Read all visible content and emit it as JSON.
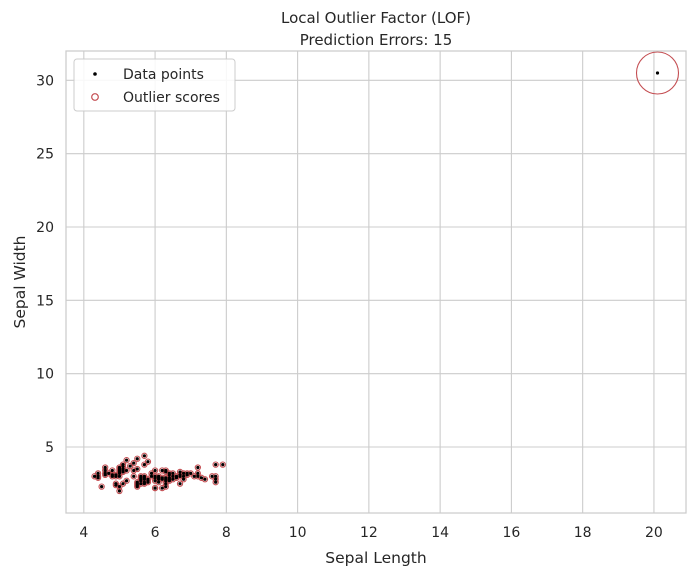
{
  "chart_data": {
    "type": "scatter",
    "title": "Local Outlier Factor (LOF)",
    "subtitle": "Prediction Errors: 15",
    "xlabel": "Sepal Length",
    "ylabel": "Sepal Width",
    "xlim": [
      3.5,
      20.9
    ],
    "ylim": [
      0.5,
      32.0
    ],
    "xticks": [
      4,
      6,
      8,
      10,
      12,
      14,
      16,
      18,
      20
    ],
    "yticks": [
      5,
      10,
      15,
      20,
      25,
      30
    ],
    "grid": true,
    "legend": {
      "position": "top-left",
      "entries": [
        "Data points",
        "Outlier scores"
      ]
    },
    "colors": {
      "points": "#000000",
      "outlier_circles": "#c44e52",
      "grid": "#cccccc",
      "axes": "#cccccc"
    },
    "series": [
      {
        "name": "Data points",
        "points": [
          [
            4.3,
            3.0
          ],
          [
            4.4,
            2.9
          ],
          [
            4.4,
            3.0
          ],
          [
            4.4,
            3.2
          ],
          [
            4.5,
            2.3
          ],
          [
            4.6,
            3.1
          ],
          [
            4.6,
            3.4
          ],
          [
            4.6,
            3.6
          ],
          [
            4.6,
            3.2
          ],
          [
            4.7,
            3.2
          ],
          [
            4.8,
            3.4
          ],
          [
            4.8,
            3.0
          ],
          [
            4.8,
            3.1
          ],
          [
            4.9,
            3.0
          ],
          [
            4.9,
            3.1
          ],
          [
            4.9,
            2.4
          ],
          [
            4.9,
            2.5
          ],
          [
            5.0,
            3.6
          ],
          [
            5.0,
            3.4
          ],
          [
            5.0,
            3.0
          ],
          [
            5.0,
            3.3
          ],
          [
            5.0,
            2.0
          ],
          [
            5.0,
            2.3
          ],
          [
            5.0,
            3.5
          ],
          [
            5.0,
            3.2
          ],
          [
            5.1,
            3.5
          ],
          [
            5.1,
            3.7
          ],
          [
            5.1,
            3.8
          ],
          [
            5.1,
            3.3
          ],
          [
            5.1,
            2.5
          ],
          [
            5.1,
            3.4
          ],
          [
            5.2,
            3.4
          ],
          [
            5.2,
            4.1
          ],
          [
            5.2,
            2.7
          ],
          [
            5.3,
            3.7
          ],
          [
            5.4,
            3.9
          ],
          [
            5.4,
            3.4
          ],
          [
            5.4,
            3.0
          ],
          [
            5.5,
            4.2
          ],
          [
            5.5,
            3.5
          ],
          [
            5.5,
            2.3
          ],
          [
            5.5,
            2.4
          ],
          [
            5.5,
            2.6
          ],
          [
            5.5,
            2.5
          ],
          [
            5.6,
            2.9
          ],
          [
            5.6,
            3.0
          ],
          [
            5.6,
            2.5
          ],
          [
            5.6,
            2.7
          ],
          [
            5.6,
            2.8
          ],
          [
            5.7,
            4.4
          ],
          [
            5.7,
            3.8
          ],
          [
            5.7,
            2.8
          ],
          [
            5.7,
            2.6
          ],
          [
            5.7,
            3.0
          ],
          [
            5.7,
            2.9
          ],
          [
            5.7,
            2.5
          ],
          [
            5.8,
            4.0
          ],
          [
            5.8,
            2.7
          ],
          [
            5.8,
            2.6
          ],
          [
            5.8,
            2.8
          ],
          [
            5.9,
            3.0
          ],
          [
            5.9,
            3.2
          ],
          [
            6.0,
            2.2
          ],
          [
            6.0,
            2.9
          ],
          [
            6.0,
            2.7
          ],
          [
            6.0,
            3.4
          ],
          [
            6.0,
            3.0
          ],
          [
            6.0,
            2.2
          ],
          [
            6.1,
            2.9
          ],
          [
            6.1,
            2.8
          ],
          [
            6.1,
            3.0
          ],
          [
            6.1,
            2.6
          ],
          [
            6.2,
            2.2
          ],
          [
            6.2,
            2.9
          ],
          [
            6.2,
            3.4
          ],
          [
            6.2,
            2.8
          ],
          [
            6.3,
            3.3
          ],
          [
            6.3,
            2.5
          ],
          [
            6.3,
            2.3
          ],
          [
            6.3,
            2.9
          ],
          [
            6.3,
            2.7
          ],
          [
            6.3,
            2.8
          ],
          [
            6.3,
            3.4
          ],
          [
            6.4,
            3.2
          ],
          [
            6.4,
            2.9
          ],
          [
            6.4,
            2.7
          ],
          [
            6.4,
            2.8
          ],
          [
            6.4,
            3.1
          ],
          [
            6.5,
            2.8
          ],
          [
            6.5,
            3.0
          ],
          [
            6.5,
            3.2
          ],
          [
            6.6,
            2.9
          ],
          [
            6.6,
            3.0
          ],
          [
            6.7,
            3.1
          ],
          [
            6.7,
            3.0
          ],
          [
            6.7,
            2.5
          ],
          [
            6.7,
            3.3
          ],
          [
            6.8,
            2.8
          ],
          [
            6.8,
            3.0
          ],
          [
            6.8,
            3.2
          ],
          [
            6.9,
            3.1
          ],
          [
            6.9,
            3.2
          ],
          [
            7.0,
            3.2
          ],
          [
            7.1,
            3.0
          ],
          [
            7.2,
            3.6
          ],
          [
            7.2,
            3.2
          ],
          [
            7.2,
            3.0
          ],
          [
            7.3,
            2.9
          ],
          [
            7.4,
            2.8
          ],
          [
            7.6,
            3.0
          ],
          [
            7.7,
            3.8
          ],
          [
            7.7,
            2.6
          ],
          [
            7.7,
            2.8
          ],
          [
            7.7,
            3.0
          ],
          [
            7.9,
            3.8
          ],
          [
            20.1,
            30.5
          ]
        ]
      },
      {
        "name": "Outlier scores",
        "points": [
          [
            4.3,
            3.0,
            0.02
          ],
          [
            4.4,
            2.9,
            0.02
          ],
          [
            4.4,
            3.0,
            0.02
          ],
          [
            4.4,
            3.2,
            0.02
          ],
          [
            4.5,
            2.3,
            0.025
          ],
          [
            4.6,
            3.1,
            0.02
          ],
          [
            4.6,
            3.4,
            0.02
          ],
          [
            4.6,
            3.6,
            0.02
          ],
          [
            4.6,
            3.2,
            0.02
          ],
          [
            4.7,
            3.2,
            0.02
          ],
          [
            4.8,
            3.4,
            0.02
          ],
          [
            4.8,
            3.0,
            0.02
          ],
          [
            4.8,
            3.1,
            0.02
          ],
          [
            4.9,
            3.0,
            0.02
          ],
          [
            4.9,
            3.1,
            0.02
          ],
          [
            4.9,
            2.4,
            0.025
          ],
          [
            4.9,
            2.5,
            0.02
          ],
          [
            5.0,
            3.6,
            0.02
          ],
          [
            5.0,
            3.4,
            0.02
          ],
          [
            5.0,
            3.0,
            0.02
          ],
          [
            5.0,
            3.3,
            0.02
          ],
          [
            5.0,
            2.0,
            0.025
          ],
          [
            5.0,
            2.3,
            0.02
          ],
          [
            5.0,
            3.5,
            0.02
          ],
          [
            5.0,
            3.2,
            0.02
          ],
          [
            5.1,
            3.5,
            0.02
          ],
          [
            5.1,
            3.7,
            0.02
          ],
          [
            5.1,
            3.8,
            0.02
          ],
          [
            5.1,
            3.3,
            0.02
          ],
          [
            5.1,
            2.5,
            0.02
          ],
          [
            5.1,
            3.4,
            0.02
          ],
          [
            5.2,
            3.4,
            0.02
          ],
          [
            5.2,
            4.1,
            0.025
          ],
          [
            5.2,
            2.7,
            0.02
          ],
          [
            5.3,
            3.7,
            0.02
          ],
          [
            5.4,
            3.9,
            0.02
          ],
          [
            5.4,
            3.4,
            0.02
          ],
          [
            5.4,
            3.0,
            0.02
          ],
          [
            5.5,
            4.2,
            0.025
          ],
          [
            5.5,
            3.5,
            0.02
          ],
          [
            5.5,
            2.3,
            0.02
          ],
          [
            5.5,
            2.4,
            0.02
          ],
          [
            5.5,
            2.6,
            0.02
          ],
          [
            5.5,
            2.5,
            0.02
          ],
          [
            5.6,
            2.9,
            0.02
          ],
          [
            5.6,
            3.0,
            0.02
          ],
          [
            5.6,
            2.5,
            0.02
          ],
          [
            5.6,
            2.7,
            0.02
          ],
          [
            5.6,
            2.8,
            0.02
          ],
          [
            5.7,
            4.4,
            0.03
          ],
          [
            5.7,
            3.8,
            0.02
          ],
          [
            5.7,
            2.8,
            0.02
          ],
          [
            5.7,
            2.6,
            0.02
          ],
          [
            5.7,
            3.0,
            0.02
          ],
          [
            5.7,
            2.9,
            0.02
          ],
          [
            5.7,
            2.5,
            0.02
          ],
          [
            5.8,
            4.0,
            0.025
          ],
          [
            5.8,
            2.7,
            0.02
          ],
          [
            5.8,
            2.6,
            0.02
          ],
          [
            5.8,
            2.8,
            0.02
          ],
          [
            5.9,
            3.0,
            0.02
          ],
          [
            5.9,
            3.2,
            0.02
          ],
          [
            6.0,
            2.2,
            0.025
          ],
          [
            6.0,
            2.9,
            0.02
          ],
          [
            6.0,
            2.7,
            0.02
          ],
          [
            6.0,
            3.4,
            0.02
          ],
          [
            6.0,
            3.0,
            0.02
          ],
          [
            6.0,
            2.2,
            0.025
          ],
          [
            6.1,
            2.9,
            0.02
          ],
          [
            6.1,
            2.8,
            0.02
          ],
          [
            6.1,
            3.0,
            0.02
          ],
          [
            6.1,
            2.6,
            0.02
          ],
          [
            6.2,
            2.2,
            0.025
          ],
          [
            6.2,
            2.9,
            0.02
          ],
          [
            6.2,
            3.4,
            0.02
          ],
          [
            6.2,
            2.8,
            0.02
          ],
          [
            6.3,
            3.3,
            0.02
          ],
          [
            6.3,
            2.5,
            0.02
          ],
          [
            6.3,
            2.3,
            0.02
          ],
          [
            6.3,
            2.9,
            0.02
          ],
          [
            6.3,
            2.7,
            0.02
          ],
          [
            6.3,
            2.8,
            0.02
          ],
          [
            6.3,
            3.4,
            0.02
          ],
          [
            6.4,
            3.2,
            0.02
          ],
          [
            6.4,
            2.9,
            0.02
          ],
          [
            6.4,
            2.7,
            0.02
          ],
          [
            6.4,
            2.8,
            0.02
          ],
          [
            6.4,
            3.1,
            0.02
          ],
          [
            6.5,
            2.8,
            0.02
          ],
          [
            6.5,
            3.0,
            0.02
          ],
          [
            6.5,
            3.2,
            0.02
          ],
          [
            6.6,
            2.9,
            0.02
          ],
          [
            6.6,
            3.0,
            0.02
          ],
          [
            6.7,
            3.1,
            0.02
          ],
          [
            6.7,
            3.0,
            0.02
          ],
          [
            6.7,
            2.5,
            0.02
          ],
          [
            6.7,
            3.3,
            0.02
          ],
          [
            6.8,
            2.8,
            0.02
          ],
          [
            6.8,
            3.0,
            0.02
          ],
          [
            6.8,
            3.2,
            0.02
          ],
          [
            6.9,
            3.1,
            0.02
          ],
          [
            6.9,
            3.2,
            0.02
          ],
          [
            7.0,
            3.2,
            0.02
          ],
          [
            7.1,
            3.0,
            0.02
          ],
          [
            7.2,
            3.6,
            0.025
          ],
          [
            7.2,
            3.2,
            0.02
          ],
          [
            7.2,
            3.0,
            0.02
          ],
          [
            7.3,
            2.9,
            0.02
          ],
          [
            7.4,
            2.8,
            0.02
          ],
          [
            7.6,
            3.0,
            0.025
          ],
          [
            7.7,
            3.8,
            0.03
          ],
          [
            7.7,
            2.6,
            0.025
          ],
          [
            7.7,
            2.8,
            0.025
          ],
          [
            7.7,
            3.0,
            0.025
          ],
          [
            7.9,
            3.8,
            0.03
          ],
          [
            20.1,
            30.5,
            1.0
          ]
        ]
      }
    ]
  }
}
